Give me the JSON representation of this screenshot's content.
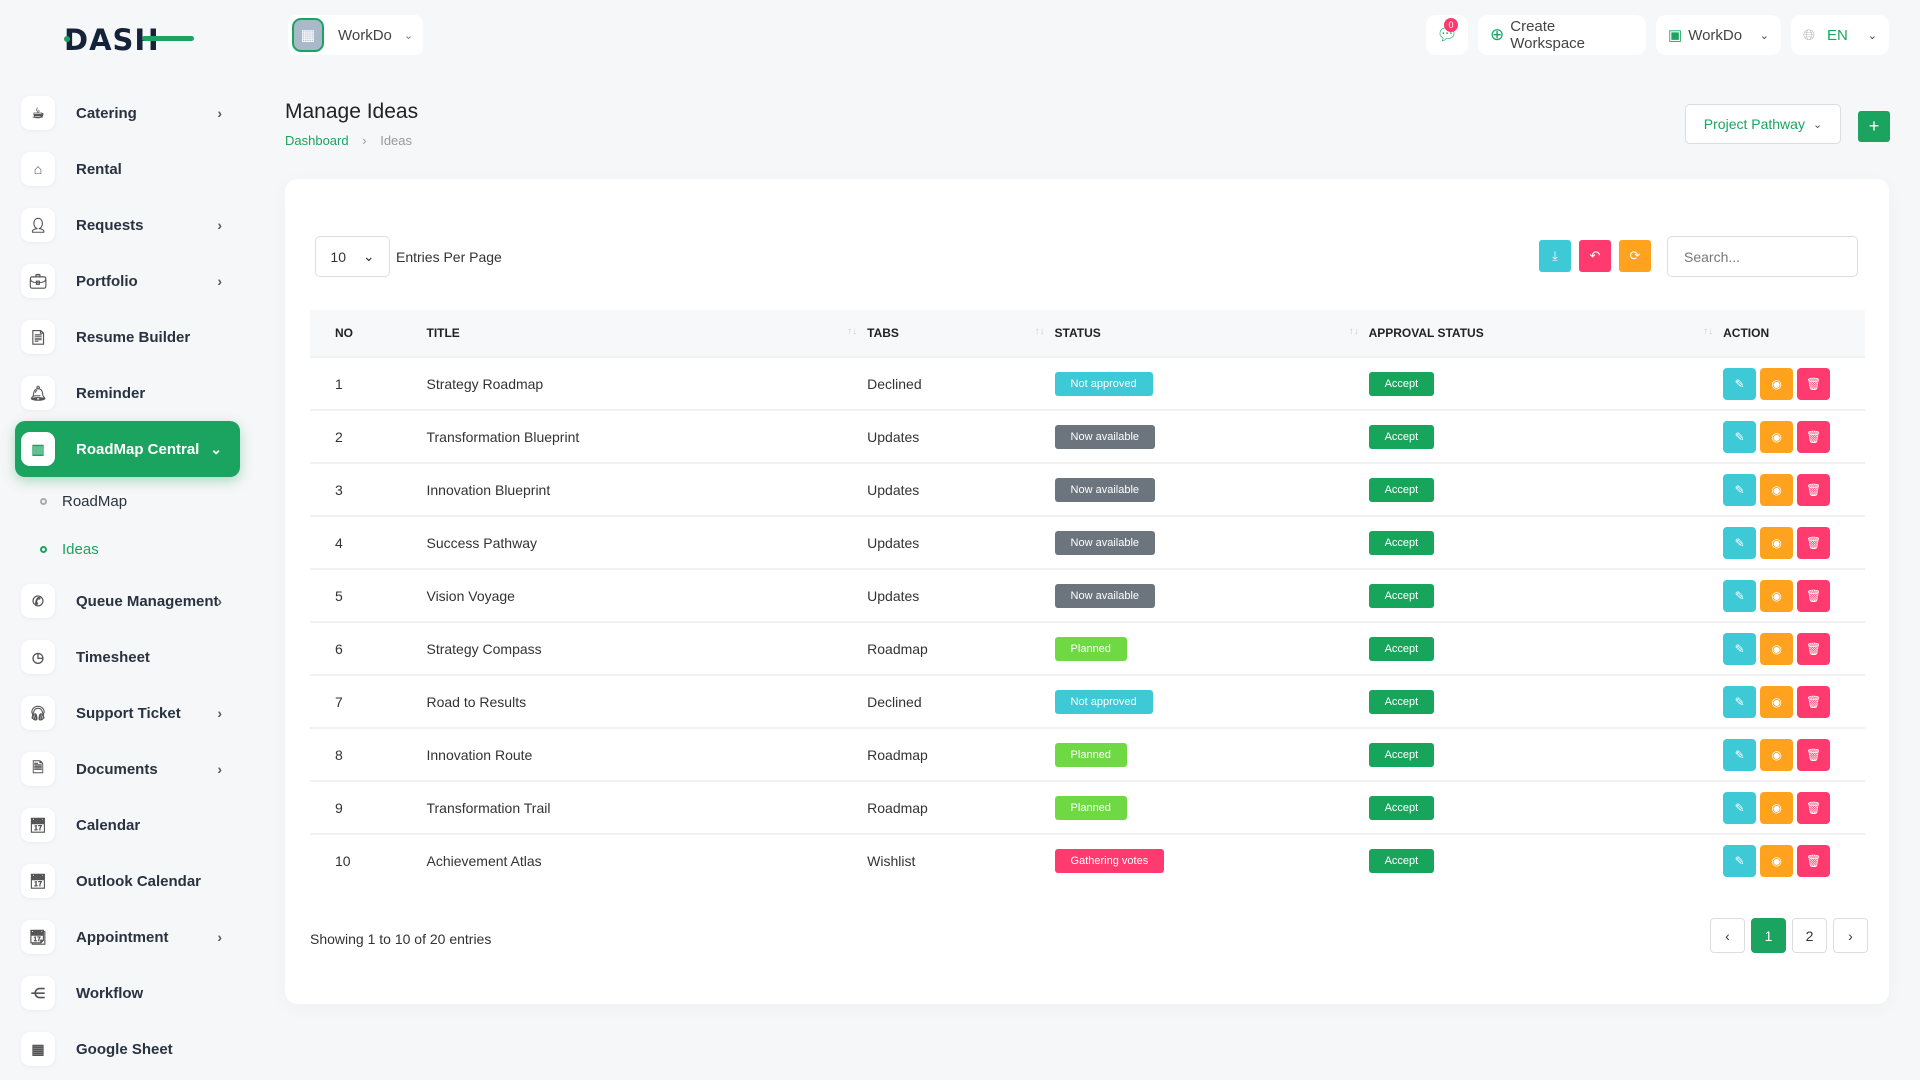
{
  "brand": {
    "logo_text": "DASH"
  },
  "header": {
    "workspace": "WorkDo",
    "notifications_count": "0",
    "create_workspace": "Create Workspace",
    "workspace_switch": "WorkDo",
    "language": "EN"
  },
  "sidebar": {
    "items": [
      {
        "label": "Catering",
        "icon": "coffee-icon",
        "chevron": true
      },
      {
        "label": "Rental",
        "icon": "home-icon"
      },
      {
        "label": "Requests",
        "icon": "user-plus-icon",
        "chevron": true
      },
      {
        "label": "Portfolio",
        "icon": "briefcase-icon",
        "chevron": true
      },
      {
        "label": "Resume Builder",
        "icon": "file-icon"
      },
      {
        "label": "Reminder",
        "icon": "bell-icon"
      },
      {
        "label": "RoadMap Central",
        "icon": "map-icon",
        "active": true
      },
      {
        "label": "Queue Management",
        "icon": "phone-icon",
        "chevron": true
      },
      {
        "label": "Timesheet",
        "icon": "clock-icon"
      },
      {
        "label": "Support Ticket",
        "icon": "headset-icon",
        "chevron": true
      },
      {
        "label": "Documents",
        "icon": "document-icon",
        "chevron": true
      },
      {
        "label": "Calendar",
        "icon": "calendar-icon"
      },
      {
        "label": "Outlook Calendar",
        "icon": "calendar-icon"
      },
      {
        "label": "Appointment",
        "icon": "calendar-clock-icon",
        "chevron": true
      },
      {
        "label": "Workflow",
        "icon": "workflow-icon"
      },
      {
        "label": "Google Sheet",
        "icon": "table-icon"
      }
    ],
    "subitems": [
      {
        "label": "RoadMap"
      },
      {
        "label": "Ideas",
        "active": true
      }
    ]
  },
  "page": {
    "title": "Manage Ideas",
    "breadcrumb": [
      "Dashboard",
      "Ideas"
    ],
    "project_select": "Project Pathway"
  },
  "table": {
    "entries_value": "10",
    "entries_label": "Entries Per Page",
    "search_placeholder": "Search...",
    "columns": [
      "NO",
      "TITLE",
      "TABS",
      "STATUS",
      "APPROVAL STATUS",
      "ACTION"
    ],
    "rows": [
      {
        "no": "1",
        "title": "Strategy Roadmap",
        "tab": "Declined",
        "status": "Not approved",
        "approval": "Accept"
      },
      {
        "no": "2",
        "title": "Transformation Blueprint",
        "tab": "Updates",
        "status": "Now available",
        "approval": "Accept"
      },
      {
        "no": "3",
        "title": "Innovation Blueprint",
        "tab": "Updates",
        "status": "Now available",
        "approval": "Accept"
      },
      {
        "no": "4",
        "title": "Success Pathway",
        "tab": "Updates",
        "status": "Now available",
        "approval": "Accept"
      },
      {
        "no": "5",
        "title": "Vision Voyage",
        "tab": "Updates",
        "status": "Now available",
        "approval": "Accept"
      },
      {
        "no": "6",
        "title": "Strategy Compass",
        "tab": "Roadmap",
        "status": "Planned",
        "approval": "Accept"
      },
      {
        "no": "7",
        "title": "Road to Results",
        "tab": "Declined",
        "status": "Not approved",
        "approval": "Accept"
      },
      {
        "no": "8",
        "title": "Innovation Route",
        "tab": "Roadmap",
        "status": "Planned",
        "approval": "Accept"
      },
      {
        "no": "9",
        "title": "Transformation Trail",
        "tab": "Roadmap",
        "status": "Planned",
        "approval": "Accept"
      },
      {
        "no": "10",
        "title": "Achievement Atlas",
        "tab": "Wishlist",
        "status": "Gathering votes",
        "approval": "Accept"
      }
    ],
    "footer": "Showing 1 to 10 of 20 entries",
    "pages": [
      "1",
      "2"
    ],
    "current_page": "1"
  },
  "colors": {
    "accent": "#1ba45f",
    "Not approved": "#3ec9d6",
    "Now available": "#6c757d",
    "Planned": "#6fd943",
    "Gathering votes": "#ff3a6e",
    "edit": "#3ec9d6",
    "view": "#ffa21d",
    "delete": "#ff3a6e"
  }
}
